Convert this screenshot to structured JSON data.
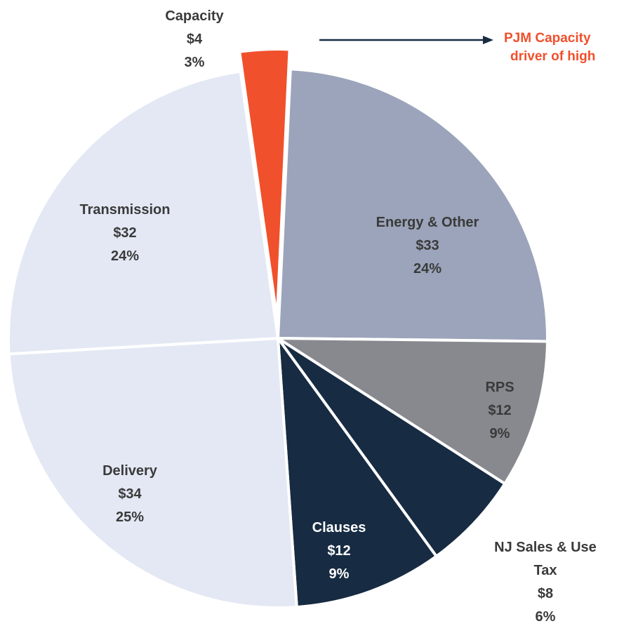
{
  "chart_data": {
    "type": "pie",
    "categories": [
      "Capacity",
      "Energy & Other",
      "RPS",
      "NJ Sales & Use Tax",
      "Clauses",
      "Delivery",
      "Transmission"
    ],
    "values": [
      4,
      33,
      12,
      8,
      12,
      34,
      32
    ],
    "value_labels": [
      "$4",
      "$33",
      "$12",
      "$8",
      "$12",
      "$34",
      "$32"
    ],
    "percents": [
      3,
      24,
      9,
      6,
      9,
      25,
      24
    ],
    "percent_labels": [
      "3%",
      "24%",
      "9%",
      "6%",
      "9%",
      "25%",
      "24%"
    ],
    "colors": [
      "#f0502c",
      "#9ba4ba",
      "#87898e",
      "#172b42",
      "#172b42",
      "#e3e8f4",
      "#e3e8f4"
    ],
    "annotation": [
      "PJM Capacity",
      "driver of high"
    ]
  }
}
